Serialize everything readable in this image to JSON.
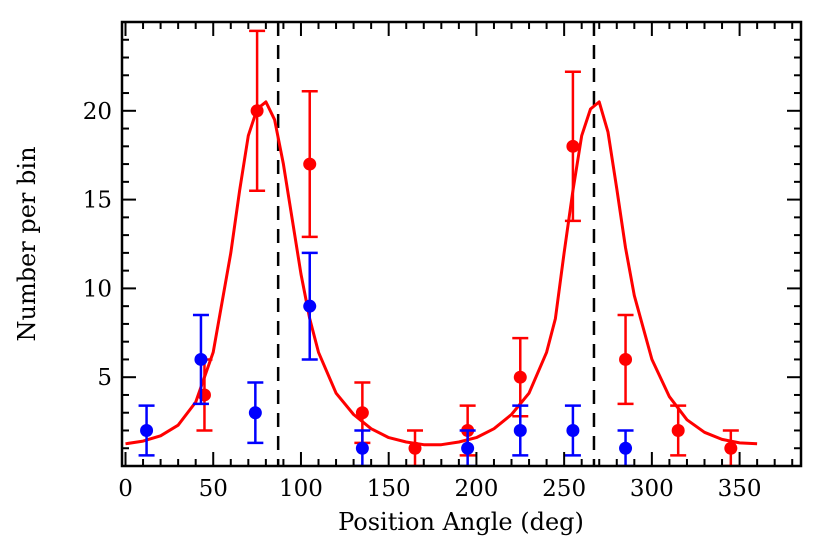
{
  "chart_data": {
    "type": "scatter",
    "title": "",
    "xlabel": "Position Angle (deg)",
    "ylabel": "Number per bin",
    "xlim": [
      -2,
      385
    ],
    "ylim": [
      0,
      25
    ],
    "x_ticks": [
      0,
      50,
      100,
      150,
      200,
      250,
      300,
      350
    ],
    "x_tick_labels": [
      "0",
      "50",
      "100",
      "150",
      "200",
      "250",
      "300",
      "350"
    ],
    "y_ticks": [
      5,
      10,
      15,
      20
    ],
    "y_tick_labels": [
      "5",
      "10",
      "15",
      "20"
    ],
    "grid": false,
    "legend": "none",
    "vertical_lines": [
      87,
      267
    ],
    "series": [
      {
        "color": "#ff0000",
        "points": [
          {
            "x": 45,
            "y": 4,
            "err": 2
          },
          {
            "x": 75,
            "y": 20,
            "err": 4.5
          },
          {
            "x": 105,
            "y": 17,
            "err": 4.1
          },
          {
            "x": 135,
            "y": 3,
            "err": 1.7
          },
          {
            "x": 165,
            "y": 1,
            "err": 1
          },
          {
            "x": 195,
            "y": 2,
            "err": 1.4
          },
          {
            "x": 225,
            "y": 5,
            "err": 2.2
          },
          {
            "x": 255,
            "y": 18,
            "err": 4.2
          },
          {
            "x": 285,
            "y": 6,
            "err": 2.5
          },
          {
            "x": 315,
            "y": 2,
            "err": 1.4
          },
          {
            "x": 345,
            "y": 1,
            "err": 1
          }
        ]
      },
      {
        "color": "#0000ff",
        "points": [
          {
            "x": 12,
            "y": 2,
            "err": 1.4
          },
          {
            "x": 43,
            "y": 6,
            "err": 2.5
          },
          {
            "x": 74,
            "y": 3,
            "err": 1.7
          },
          {
            "x": 105,
            "y": 9,
            "err": 3
          },
          {
            "x": 135,
            "y": 1,
            "err": 1
          },
          {
            "x": 195,
            "y": 1,
            "err": 1
          },
          {
            "x": 225,
            "y": 2,
            "err": 1.4
          },
          {
            "x": 255,
            "y": 2,
            "err": 1.4
          },
          {
            "x": 285,
            "y": 1,
            "err": 1
          }
        ]
      }
    ],
    "fit_curve": {
      "color": "#ff0000",
      "x": [
        0,
        10,
        20,
        30,
        40,
        50,
        60,
        65,
        70,
        75,
        80,
        85,
        90,
        95,
        100,
        105,
        110,
        120,
        130,
        140,
        150,
        160,
        170,
        180,
        190,
        200,
        210,
        220,
        230,
        240,
        245,
        250,
        255,
        260,
        265,
        270,
        275,
        280,
        285,
        290,
        300,
        310,
        320,
        330,
        340,
        350,
        360
      ],
      "y": [
        1.25,
        1.4,
        1.7,
        2.3,
        3.6,
        6.4,
        12.0,
        15.5,
        18.6,
        20.1,
        20.5,
        19.5,
        17.0,
        13.9,
        10.8,
        8.3,
        6.4,
        4.1,
        2.9,
        2.1,
        1.6,
        1.35,
        1.2,
        1.2,
        1.35,
        1.6,
        2.1,
        2.9,
        4.1,
        6.4,
        8.3,
        12.0,
        15.5,
        18.6,
        20.1,
        20.5,
        18.8,
        15.6,
        12.3,
        9.6,
        6.0,
        3.9,
        2.6,
        1.9,
        1.5,
        1.3,
        1.25
      ]
    }
  }
}
